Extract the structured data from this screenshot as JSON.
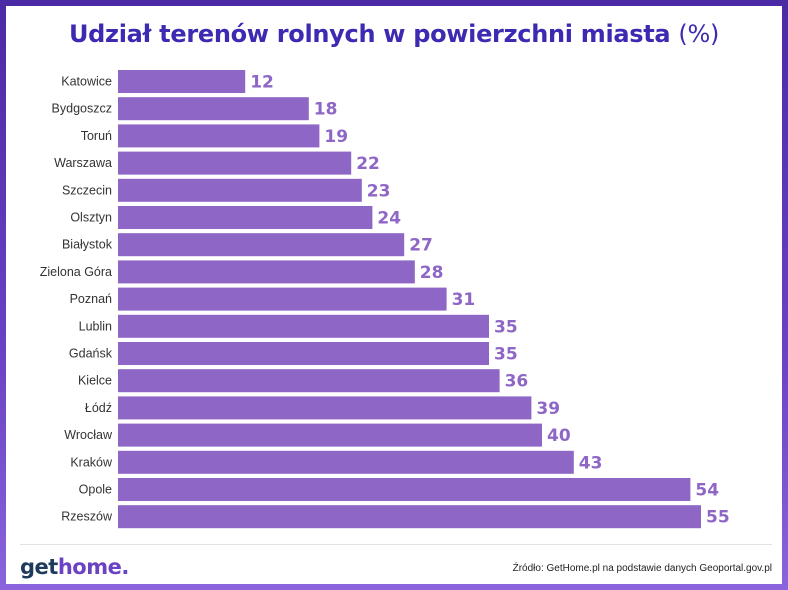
{
  "header": {
    "title": "Udział terenów rolnych w powierzchni miasta",
    "title_unit": "(%)"
  },
  "chart_data": {
    "type": "bar",
    "orientation": "horizontal",
    "title": "Udział terenów rolnych w powierzchni miasta (%)",
    "categories": [
      "Katowice",
      "Bydgoszcz",
      "Toruń",
      "Warszawa",
      "Szczecin",
      "Olsztyn",
      "Białystok",
      "Zielona Góra",
      "Poznań",
      "Lublin",
      "Gdańsk",
      "Kielce",
      "Łódź",
      "Wrocław",
      "Kraków",
      "Opole",
      "Rzeszów"
    ],
    "values": [
      12,
      18,
      19,
      22,
      23,
      24,
      27,
      28,
      31,
      35,
      35,
      36,
      39,
      40,
      43,
      54,
      55
    ],
    "xlim": [
      0,
      55
    ],
    "bar_color": "#8e66c6",
    "value_label_color": "#8e66c6",
    "grid": false
  },
  "footer": {
    "logo_part1": "get",
    "logo_part2": "home.",
    "source": "Źródło: GetHome.pl na podstawie danych Geoportal.gov.pl"
  }
}
